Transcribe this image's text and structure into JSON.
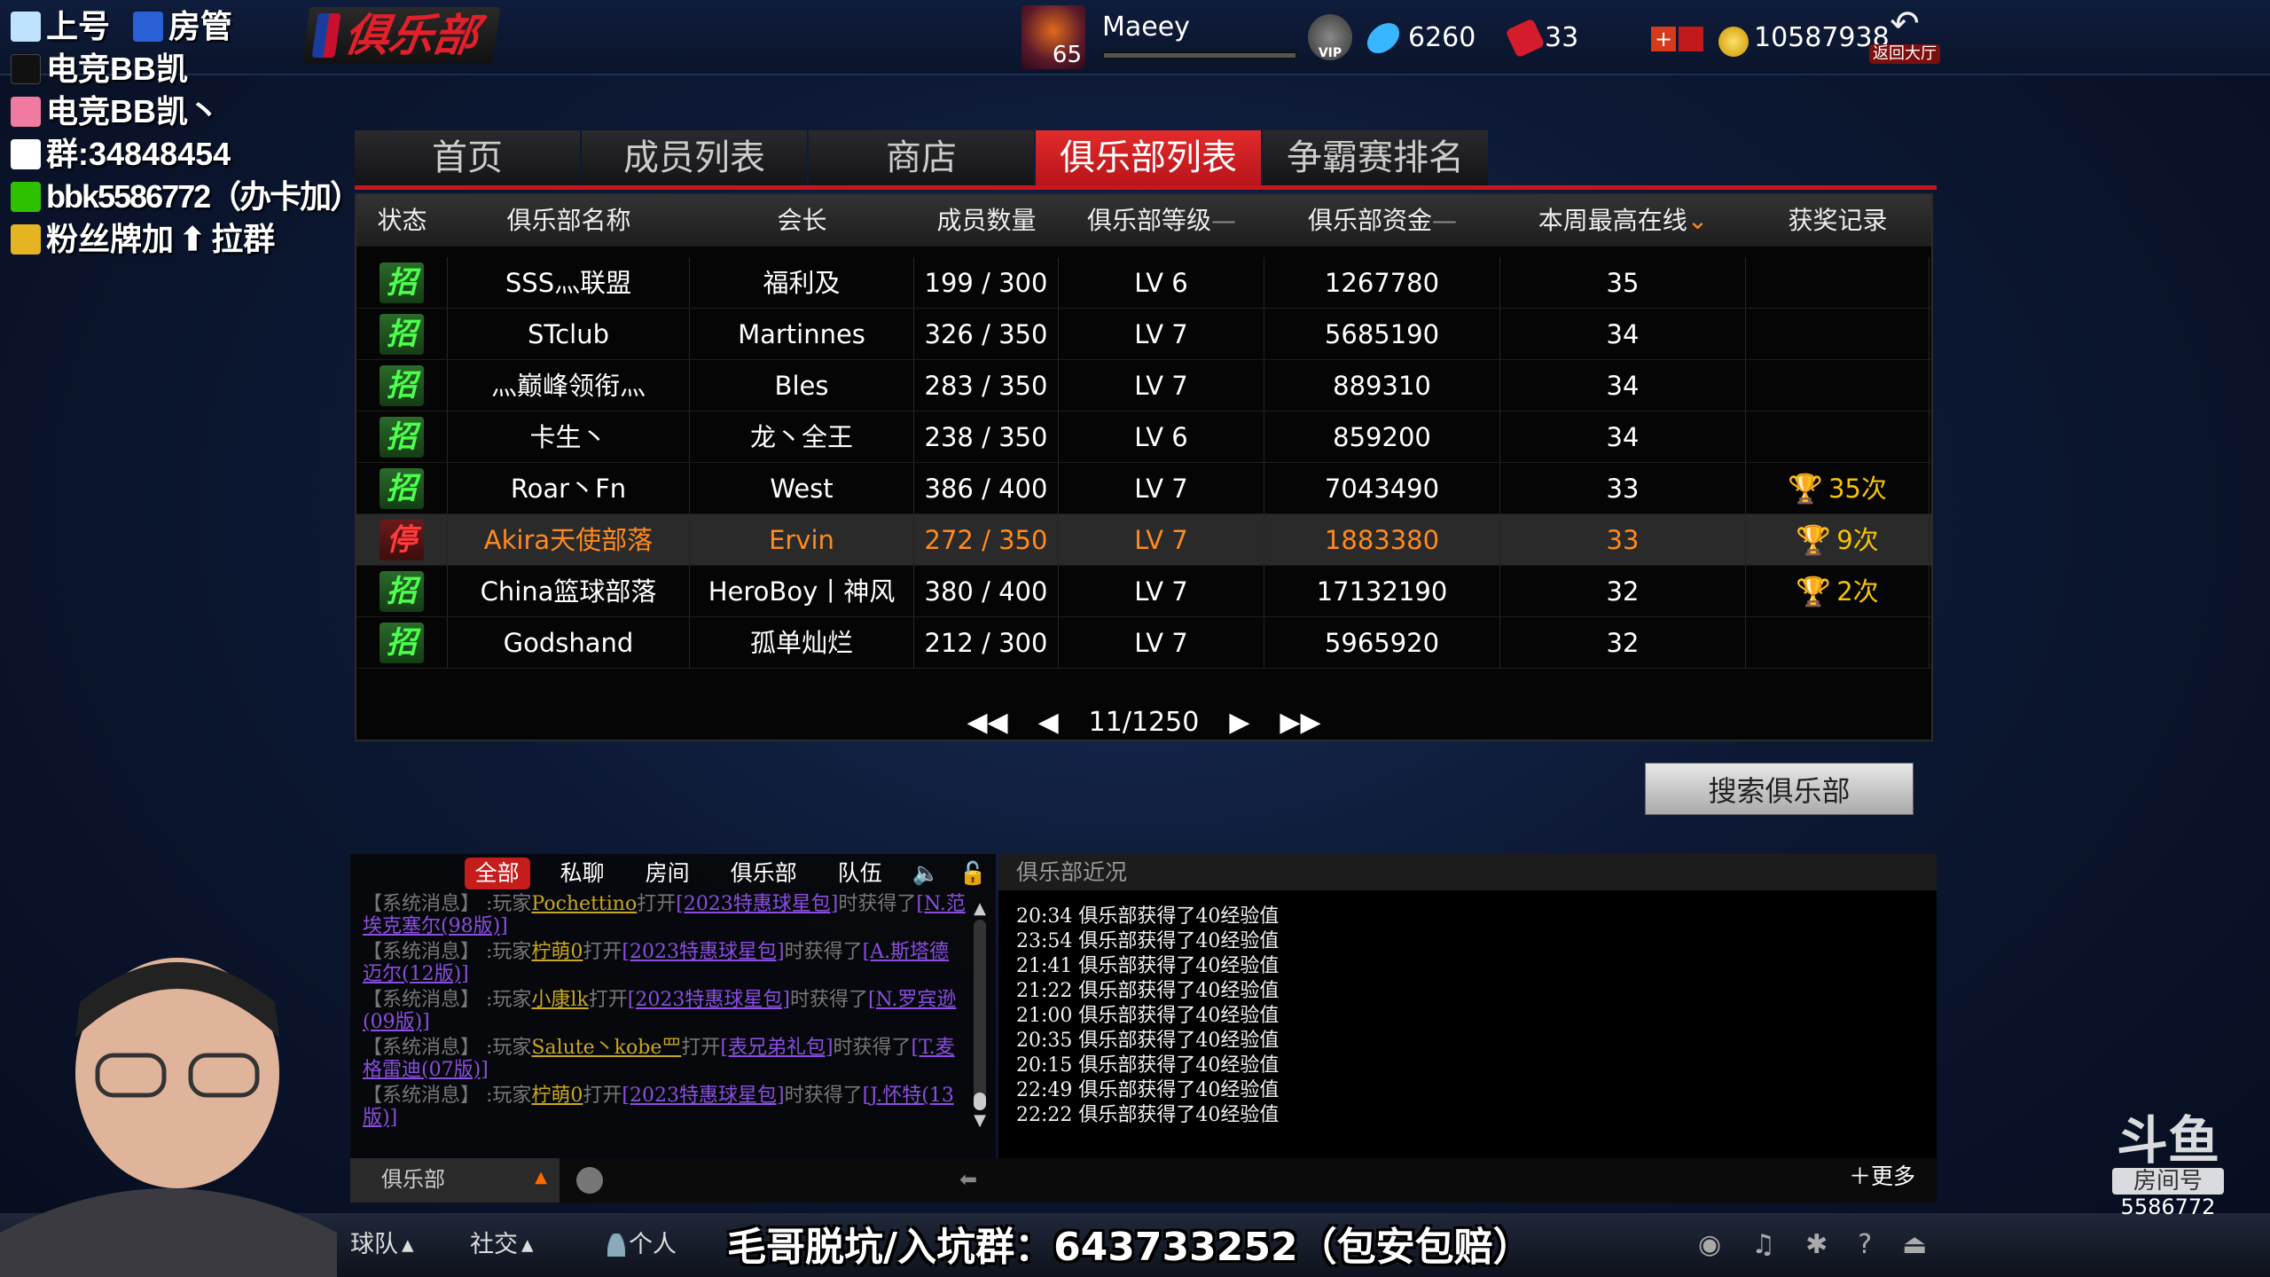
{
  "overlay": {
    "lines": [
      "上号",
      "房管",
      "电竞BB凯",
      "电竞BB凯丶",
      "群:34848454",
      "bbk5586772（办卡加）",
      "粉丝牌加",
      "拉群"
    ]
  },
  "header": {
    "logo_text": "俱乐部",
    "avatar_level": "65",
    "username": "Maeey",
    "diamond": "6260",
    "ticket": "33",
    "gold": "10587938",
    "back_label": "返回大厅"
  },
  "tabs": [
    "首页",
    "成员列表",
    "商店",
    "俱乐部列表",
    "争霸赛排名"
  ],
  "active_tab": "俱乐部列表",
  "table": {
    "columns": [
      "状态",
      "俱乐部名称",
      "会长",
      "成员数量",
      "俱乐部等级",
      "俱乐部资金",
      "本周最高在线",
      "获奖记录"
    ],
    "rows": [
      {
        "status": "招",
        "name": "SSS灬联盟",
        "leader": "福利及",
        "members": "199 / 300",
        "level": "LV 6",
        "fund": "1267780",
        "online": "35",
        "award": ""
      },
      {
        "status": "招",
        "name": "STclub",
        "leader": "Martinnes",
        "members": "326 / 350",
        "level": "LV 7",
        "fund": "5685190",
        "online": "34",
        "award": ""
      },
      {
        "status": "招",
        "name": "灬巅峰领衔灬",
        "leader": "Bles",
        "members": "283 / 350",
        "level": "LV 7",
        "fund": "889310",
        "online": "34",
        "award": ""
      },
      {
        "status": "招",
        "name": "卡生丶",
        "leader": "龙丶全王",
        "members": "238 / 350",
        "level": "LV 6",
        "fund": "859200",
        "online": "34",
        "award": ""
      },
      {
        "status": "招",
        "name": "Roar丶Fn",
        "leader": "West",
        "members": "386 / 400",
        "level": "LV 7",
        "fund": "7043490",
        "online": "33",
        "award": "35次"
      },
      {
        "status": "停",
        "name": "Akira天使部落",
        "leader": "Ervin",
        "members": "272 / 350",
        "level": "LV 7",
        "fund": "1883380",
        "online": "33",
        "award": "9次",
        "highlighted": true
      },
      {
        "status": "招",
        "name": "China篮球部落",
        "leader": "HeroBoy丨神风",
        "members": "380 / 400",
        "level": "LV 7",
        "fund": "17132190",
        "online": "32",
        "award": "2次"
      },
      {
        "status": "招",
        "name": "Godshand",
        "leader": "孤单灿烂",
        "members": "212 / 300",
        "level": "LV 7",
        "fund": "5965920",
        "online": "32",
        "award": ""
      }
    ],
    "page": "11/1250"
  },
  "search_button": "搜索俱乐部",
  "chat": {
    "tabs": [
      "全部",
      "私聊",
      "房间",
      "俱乐部",
      "队伍"
    ],
    "active": "全部",
    "messages": [
      {
        "prefix": "【系统消息】 :玩家",
        "user": "Pochettino",
        "mid": "打开",
        "pack": "[2023特惠球星包]",
        "tail": "时获得了",
        "item": "[N.范埃克塞尔(98版)]"
      },
      {
        "prefix": "【系统消息】 :玩家",
        "user": "柠萌0",
        "mid": "打开",
        "pack": "[2023特惠球星包]",
        "tail": "时获得了",
        "item": "[A.斯塔德迈尔(12版)]"
      },
      {
        "prefix": "【系统消息】 :玩家",
        "user": "小康lk",
        "mid": "打开",
        "pack": "[2023特惠球星包]",
        "tail": "时获得了",
        "item": "[N.罗宾逊(09版)]"
      },
      {
        "prefix": "【系统消息】 :玩家",
        "user": "Salute丶kobe罒",
        "mid": "打开",
        "pack": "[表兄弟礼包]",
        "tail": "时获得了",
        "item": "[T.麦格雷迪(07版)]"
      },
      {
        "prefix": "【系统消息】 :玩家",
        "user": "柠萌0",
        "mid": "打开",
        "pack": "[2023特惠球星包]",
        "tail": "时获得了",
        "item": "[J.怀特(13版)]"
      }
    ],
    "channel": "俱乐部"
  },
  "events": {
    "title": "俱乐部近况",
    "more": "更多",
    "items": [
      "20:34 俱乐部获得了40经验值",
      "23:54 俱乐部获得了40经验值",
      "21:41 俱乐部获得了40经验值",
      "21:22 俱乐部获得了40经验值",
      "21:00 俱乐部获得了40经验值",
      "20:35 俱乐部获得了40经验值",
      "20:15 俱乐部获得了40经验值",
      "22:49 俱乐部获得了40经验值",
      "22:22 俱乐部获得了40经验值"
    ]
  },
  "bottom": {
    "team": "球队",
    "social": "社交",
    "personal": "个人",
    "promo": "毛哥脱坑/入坑群：643733252（包安包赔）"
  },
  "douyu": {
    "logo": "斗鱼",
    "room_label": "房间号",
    "room_id": "5586772"
  },
  "colors": {
    "accent": "#c8161d",
    "highlight": "#ff8a1f",
    "award": "#f5c400",
    "recruit": "#4cff4c"
  }
}
